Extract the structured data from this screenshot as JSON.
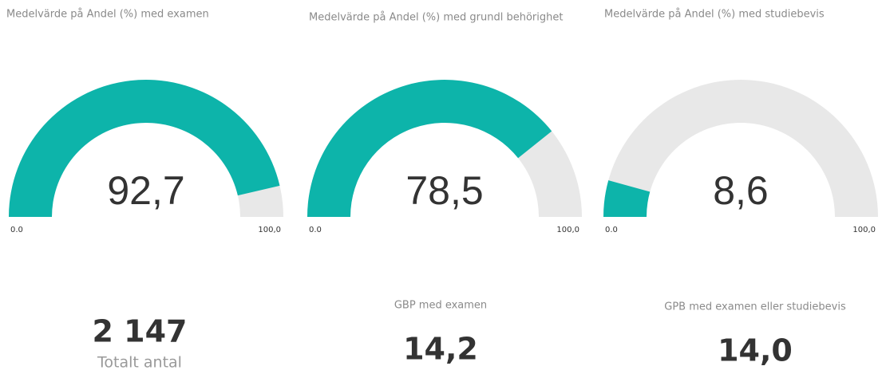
{
  "chart_data": [
    {
      "type": "gauge",
      "title": "Medelvärde på Andel (%) med examen",
      "values": [
        92.7
      ],
      "value_labels": [
        "92,7"
      ],
      "color": "#0db4aa",
      "track_color": "#e8e8e8",
      "ylim": [
        0,
        100
      ],
      "yticks": [
        {
          "value": 0,
          "label": "0.0"
        },
        {
          "value": 100,
          "label": "100,0"
        }
      ]
    },
    {
      "type": "gauge",
      "title": "Medelvärde på Andel (%) med grundl behörighet",
      "values": [
        78.5
      ],
      "value_labels": [
        "78,5"
      ],
      "color": "#0db4aa",
      "track_color": "#e8e8e8",
      "ylim": [
        0,
        100
      ],
      "yticks": [
        {
          "value": 0,
          "label": "0.0"
        },
        {
          "value": 100,
          "label": "100,0"
        }
      ]
    },
    {
      "type": "gauge",
      "title": "Medelvärde på Andel (%) med studiebevis",
      "values": [
        8.6
      ],
      "value_labels": [
        "8,6"
      ],
      "color": "#0db4aa",
      "track_color": "#e8e8e8",
      "ylim": [
        0,
        100
      ],
      "yticks": [
        {
          "value": 0,
          "label": "0.0"
        },
        {
          "value": 100,
          "label": "100,0"
        }
      ]
    }
  ],
  "cards": [
    {
      "value": "2 147",
      "label": "Totalt antal"
    },
    {
      "title": "GBP med examen",
      "value": "14,2"
    },
    {
      "title": "GPB med examen eller studiebevis",
      "value": "14,0"
    }
  ]
}
